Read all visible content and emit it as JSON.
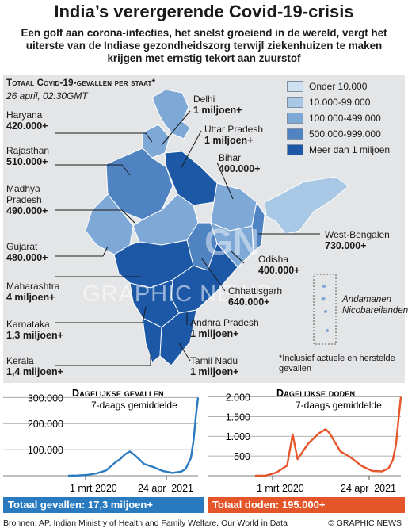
{
  "title": "India’s verergerende Covid-19-crisis",
  "subtitle": "Een golf aan corona-infecties, het snelst groeiend in de wereld, vergt het uiterste van de Indiase gezondheidszorg terwijl ziekenhuizen te maken krijgen met ernstig tekort aan zuurstof",
  "map": {
    "heading": "Totaal Covid-19-gevallen per staat*",
    "date": "26 april, 02:30GMT",
    "legend": [
      {
        "label": "Onder 10.000",
        "color": "#cfe0f1"
      },
      {
        "label": "10.000-99.000",
        "color": "#a9c8e6"
      },
      {
        "label": "100.000-499.000",
        "color": "#7ea8d6"
      },
      {
        "label": "500.000-999.000",
        "color": "#4f83c2"
      },
      {
        "label": "Meer dan 1 miljoen",
        "color": "#1c58a6"
      }
    ],
    "states": [
      {
        "name": "Haryana",
        "value": "420.000+"
      },
      {
        "name": "Rajasthan",
        "value": "510.000+"
      },
      {
        "name": "Madhya Pradesh",
        "value": "490.000+"
      },
      {
        "name": "Gujarat",
        "value": "480.000+"
      },
      {
        "name": "Maharashtra",
        "value": "4 miljoen+"
      },
      {
        "name": "Karnataka",
        "value": "1,3 miljoen+"
      },
      {
        "name": "Kerala",
        "value": "1,4 miljoen+"
      },
      {
        "name": "Delhi",
        "value": "1 miljoen+"
      },
      {
        "name": "Uttar Pradesh",
        "value": "1 miljoen+"
      },
      {
        "name": "Bihar",
        "value": "400.000+"
      },
      {
        "name": "West-Bengalen",
        "value": "730.000+"
      },
      {
        "name": "Odisha",
        "value": "400.000+"
      },
      {
        "name": "Chhattisgarh",
        "value": "640.000+"
      },
      {
        "name": "Andhra Pradesh",
        "value": "1 miljoen+"
      },
      {
        "name": "Tamil Nadu",
        "value": "1 miljoen+"
      }
    ],
    "islands": "Andamanen Nicobareilanden",
    "note": "*Inclusief actuele en herstelde gevallen",
    "watermark": "GRAPHIC NEWS"
  },
  "chart_data": [
    {
      "type": "line",
      "title": "Dagelijkse gevallen",
      "subtitle": "7-daags gemiddelde",
      "x_tick_labels": [
        "1 mrt 2020",
        "24 apr",
        "2021"
      ],
      "y_ticks": [
        0,
        100000,
        200000,
        300000
      ],
      "y_tick_labels": [
        "",
        "100.000",
        "200.000",
        "300.000"
      ],
      "ylim": [
        0,
        310000
      ],
      "x": [
        "2020-03-01",
        "2020-04-01",
        "2020-05-01",
        "2020-06-01",
        "2020-07-01",
        "2020-08-01",
        "2020-08-15",
        "2020-09-01",
        "2020-09-16",
        "2020-10-01",
        "2020-10-15",
        "2020-11-01",
        "2020-12-01",
        "2021-01-01",
        "2021-02-01",
        "2021-03-01",
        "2021-03-15",
        "2021-04-01",
        "2021-04-10",
        "2021-04-17",
        "2021-04-24"
      ],
      "values": [
        0,
        1000,
        3000,
        9000,
        20000,
        52000,
        63000,
        82000,
        93000,
        80000,
        64000,
        45000,
        33000,
        18000,
        11000,
        16000,
        26000,
        68000,
        140000,
        230000,
        300000
      ],
      "color": "#2a7ac0",
      "total_label": "Totaal gevallen: 17,3 miljoen+"
    },
    {
      "type": "line",
      "title": "Dagelijkse doden",
      "subtitle": "7-daags gemiddelde",
      "x_tick_labels": [
        "1 mrt 2020",
        "24 apr",
        "2021"
      ],
      "y_ticks": [
        0,
        500,
        1000,
        1500,
        2000
      ],
      "y_tick_labels": [
        "",
        "500",
        "1.000",
        "1.500",
        "2.000"
      ],
      "ylim": [
        0,
        2050
      ],
      "x": [
        "2020-03-01",
        "2020-04-01",
        "2020-05-01",
        "2020-06-01",
        "2020-06-17",
        "2020-07-01",
        "2020-08-01",
        "2020-09-01",
        "2020-09-20",
        "2020-10-01",
        "2020-11-01",
        "2020-12-01",
        "2021-01-01",
        "2021-02-01",
        "2021-03-01",
        "2021-03-20",
        "2021-04-01",
        "2021-04-10",
        "2021-04-17",
        "2021-04-24"
      ],
      "values": [
        0,
        5,
        80,
        260,
        1050,
        420,
        820,
        1080,
        1180,
        1080,
        620,
        460,
        250,
        120,
        110,
        190,
        400,
        800,
        1400,
        2000
      ],
      "color": "#e4552a",
      "total_label": "Totaal doden: 195.000+"
    }
  ],
  "footer": {
    "sources": "Bronnen: AP, Indian Ministry of Health and Family Welfare, Our World in Data",
    "credit": "© GRAPHIC NEWS"
  }
}
